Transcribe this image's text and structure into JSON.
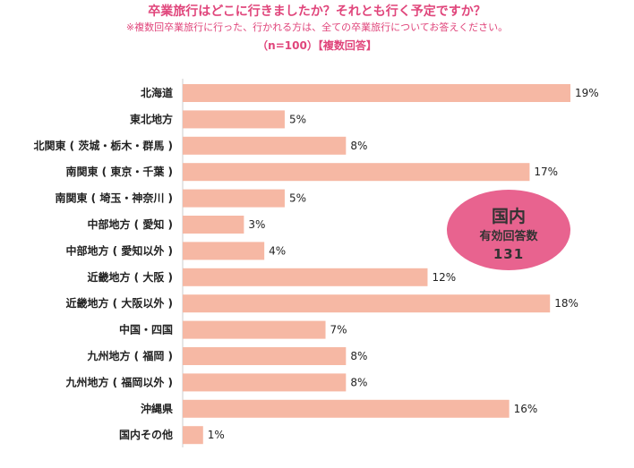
{
  "header": {
    "title": "卒業旅行はどこに行きましたか？それとも行く予定ですか？",
    "note": "※複数回卒業旅行に行った、行かれる方は、全ての卒業旅行についてお答えください。",
    "sub": "（n=100）【複数回答】"
  },
  "badge": {
    "title": "国内",
    "label": "有効回答数",
    "count": "131"
  },
  "colors": {
    "bar": "#f6b8a4",
    "badge": "#e8638f",
    "heading": "#e0457b",
    "axis": "#cccccc"
  },
  "chart_data": {
    "type": "bar",
    "orientation": "horizontal",
    "title": "",
    "xlabel": "",
    "ylabel": "",
    "xlim": [
      0,
      19
    ],
    "grid": false,
    "categories": [
      "北海道",
      "東北地方",
      "北関東 ( 茨城・栃木・群馬 )",
      "南関東 ( 東京・千葉 )",
      "南関東 ( 埼玉・神奈川 )",
      "中部地方 ( 愛知 )",
      "中部地方 ( 愛知以外 )",
      "近畿地方 ( 大阪 )",
      "近畿地方 ( 大阪以外 )",
      "中国・四国",
      "九州地方 ( 福岡 )",
      "九州地方 ( 福岡以外 )",
      "沖縄県",
      "国内その他"
    ],
    "values": [
      19,
      5,
      8,
      17,
      5,
      3,
      4,
      12,
      18,
      7,
      8,
      8,
      16,
      1
    ],
    "value_labels": [
      "19%",
      "5%",
      "8%",
      "17%",
      "5%",
      "3%",
      "4%",
      "12%",
      "18%",
      "7%",
      "8%",
      "8%",
      "16%",
      "1%"
    ]
  }
}
